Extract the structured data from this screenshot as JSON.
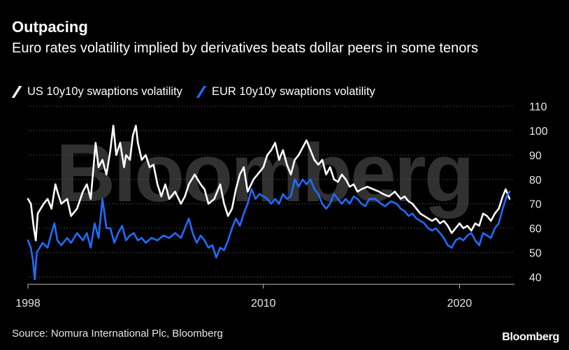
{
  "header": {
    "title": "Outpacing",
    "subtitle": "Euro rates volatility implied by derivatives beats dollar peers in some tenors"
  },
  "footer": {
    "source": "Source: Nomura International Plc, Bloomberg",
    "brand": "Bloomberg"
  },
  "watermark": "Bloomberg",
  "colors": {
    "background": "#000000",
    "us_series": "#ffffff",
    "eur_series": "#1f6cff",
    "grid": "#666666"
  },
  "chart_data": {
    "type": "line",
    "title": "Outpacing",
    "xlabel": "",
    "ylabel": "",
    "xlim": [
      1998,
      2022.8
    ],
    "ylim": [
      37,
      112
    ],
    "x_ticks": [
      1998,
      2010,
      2020
    ],
    "x_tick_labels": [
      "1998",
      "2010",
      "2020"
    ],
    "y_ticks": [
      40,
      50,
      60,
      70,
      80,
      90,
      100,
      110
    ],
    "y_tick_labels": [
      "40",
      "50",
      "60",
      "70",
      "80",
      "90",
      "100",
      "110"
    ],
    "grid": true,
    "legend_position": "top-left",
    "series": [
      {
        "name": "US 10y10y swaptions volatility",
        "color": "#ffffff",
        "points": [
          [
            1998.0,
            72
          ],
          [
            1998.15,
            70
          ],
          [
            1998.3,
            60
          ],
          [
            1998.4,
            55
          ],
          [
            1998.5,
            66
          ],
          [
            1998.65,
            68
          ],
          [
            1998.8,
            70
          ],
          [
            1999.0,
            72
          ],
          [
            1999.2,
            68
          ],
          [
            1999.4,
            78
          ],
          [
            1999.5,
            75
          ],
          [
            1999.7,
            70
          ],
          [
            2000.0,
            72
          ],
          [
            2000.2,
            65
          ],
          [
            2000.5,
            68
          ],
          [
            2000.8,
            75
          ],
          [
            2001.0,
            78
          ],
          [
            2001.2,
            72
          ],
          [
            2001.45,
            95
          ],
          [
            2001.6,
            85
          ],
          [
            2001.8,
            88
          ],
          [
            2002.0,
            82
          ],
          [
            2002.2,
            92
          ],
          [
            2002.35,
            102
          ],
          [
            2002.5,
            90
          ],
          [
            2002.7,
            95
          ],
          [
            2002.9,
            85
          ],
          [
            2003.0,
            90
          ],
          [
            2003.2,
            88
          ],
          [
            2003.35,
            98
          ],
          [
            2003.5,
            102
          ],
          [
            2003.6,
            95
          ],
          [
            2003.8,
            88
          ],
          [
            2004.0,
            90
          ],
          [
            2004.2,
            85
          ],
          [
            2004.4,
            86
          ],
          [
            2004.6,
            78
          ],
          [
            2004.8,
            73
          ],
          [
            2005.0,
            78
          ],
          [
            2005.2,
            72
          ],
          [
            2005.5,
            75
          ],
          [
            2005.8,
            70
          ],
          [
            2006.0,
            73
          ],
          [
            2006.2,
            78
          ],
          [
            2006.5,
            82
          ],
          [
            2006.8,
            78
          ],
          [
            2007.0,
            76
          ],
          [
            2007.2,
            70
          ],
          [
            2007.5,
            72
          ],
          [
            2007.8,
            78
          ],
          [
            2008.0,
            70
          ],
          [
            2008.2,
            65
          ],
          [
            2008.4,
            68
          ],
          [
            2008.6,
            76
          ],
          [
            2008.8,
            82
          ],
          [
            2009.0,
            85
          ],
          [
            2009.2,
            75
          ],
          [
            2009.5,
            80
          ],
          [
            2009.7,
            82
          ],
          [
            2010.0,
            85
          ],
          [
            2010.2,
            90
          ],
          [
            2010.4,
            92
          ],
          [
            2010.6,
            95
          ],
          [
            2010.8,
            88
          ],
          [
            2011.0,
            92
          ],
          [
            2011.2,
            86
          ],
          [
            2011.4,
            82
          ],
          [
            2011.6,
            88
          ],
          [
            2011.8,
            90
          ],
          [
            2012.0,
            93
          ],
          [
            2012.2,
            96
          ],
          [
            2012.4,
            92
          ],
          [
            2012.6,
            88
          ],
          [
            2012.8,
            86
          ],
          [
            2013.0,
            88
          ],
          [
            2013.2,
            82
          ],
          [
            2013.4,
            85
          ],
          [
            2013.6,
            80
          ],
          [
            2013.8,
            79
          ],
          [
            2014.0,
            82
          ],
          [
            2014.2,
            80
          ],
          [
            2014.4,
            77
          ],
          [
            2014.6,
            78
          ],
          [
            2014.8,
            75
          ],
          [
            2015.0,
            76
          ],
          [
            2015.3,
            77
          ],
          [
            2015.6,
            76
          ],
          [
            2015.9,
            75
          ],
          [
            2016.1,
            74
          ],
          [
            2016.4,
            73
          ],
          [
            2016.7,
            75
          ],
          [
            2017.0,
            72
          ],
          [
            2017.2,
            73
          ],
          [
            2017.4,
            71
          ],
          [
            2017.6,
            70
          ],
          [
            2017.8,
            68
          ],
          [
            2018.0,
            66
          ],
          [
            2018.2,
            65
          ],
          [
            2018.4,
            64
          ],
          [
            2018.6,
            63
          ],
          [
            2018.8,
            64
          ],
          [
            2019.0,
            62
          ],
          [
            2019.2,
            63
          ],
          [
            2019.4,
            61
          ],
          [
            2019.6,
            58
          ],
          [
            2019.8,
            60
          ],
          [
            2020.0,
            62
          ],
          [
            2020.2,
            60
          ],
          [
            2020.4,
            61
          ],
          [
            2020.6,
            59
          ],
          [
            2020.8,
            62
          ],
          [
            2021.0,
            61
          ],
          [
            2021.2,
            66
          ],
          [
            2021.4,
            65
          ],
          [
            2021.6,
            63
          ],
          [
            2021.8,
            66
          ],
          [
            2022.0,
            68
          ],
          [
            2022.2,
            73
          ],
          [
            2022.35,
            76
          ],
          [
            2022.55,
            72
          ]
        ]
      },
      {
        "name": "EUR 10y10y swaptions volatility",
        "color": "#1f6cff",
        "points": [
          [
            1998.0,
            55
          ],
          [
            1998.15,
            52
          ],
          [
            1998.25,
            47
          ],
          [
            1998.35,
            39
          ],
          [
            1998.45,
            50
          ],
          [
            1998.6,
            52
          ],
          [
            1998.75,
            54
          ],
          [
            1999.0,
            52
          ],
          [
            1999.2,
            58
          ],
          [
            1999.35,
            62
          ],
          [
            1999.5,
            55
          ],
          [
            1999.7,
            53
          ],
          [
            2000.0,
            56
          ],
          [
            2000.2,
            54
          ],
          [
            2000.5,
            58
          ],
          [
            2000.8,
            55
          ],
          [
            2001.0,
            58
          ],
          [
            2001.2,
            52
          ],
          [
            2001.4,
            62
          ],
          [
            2001.6,
            56
          ],
          [
            2001.8,
            72
          ],
          [
            2002.0,
            60
          ],
          [
            2002.2,
            60
          ],
          [
            2002.4,
            54
          ],
          [
            2002.6,
            58
          ],
          [
            2002.8,
            61
          ],
          [
            2003.0,
            55
          ],
          [
            2003.2,
            57
          ],
          [
            2003.4,
            58
          ],
          [
            2003.6,
            55
          ],
          [
            2003.8,
            56
          ],
          [
            2004.0,
            54
          ],
          [
            2004.3,
            56
          ],
          [
            2004.6,
            55
          ],
          [
            2004.9,
            57
          ],
          [
            2005.2,
            56
          ],
          [
            2005.5,
            58
          ],
          [
            2005.8,
            56
          ],
          [
            2006.0,
            60
          ],
          [
            2006.2,
            64
          ],
          [
            2006.4,
            58
          ],
          [
            2006.6,
            54
          ],
          [
            2006.8,
            57
          ],
          [
            2007.0,
            55
          ],
          [
            2007.2,
            52
          ],
          [
            2007.4,
            53
          ],
          [
            2007.6,
            48
          ],
          [
            2007.8,
            52
          ],
          [
            2008.0,
            51
          ],
          [
            2008.2,
            55
          ],
          [
            2008.4,
            60
          ],
          [
            2008.6,
            64
          ],
          [
            2008.8,
            61
          ],
          [
            2009.0,
            66
          ],
          [
            2009.2,
            70
          ],
          [
            2009.4,
            76
          ],
          [
            2009.6,
            72
          ],
          [
            2009.8,
            74
          ],
          [
            2010.0,
            73
          ],
          [
            2010.2,
            72
          ],
          [
            2010.4,
            70
          ],
          [
            2010.6,
            72
          ],
          [
            2010.8,
            70
          ],
          [
            2011.0,
            74
          ],
          [
            2011.2,
            72
          ],
          [
            2011.4,
            73
          ],
          [
            2011.6,
            80
          ],
          [
            2011.8,
            77
          ],
          [
            2012.0,
            80
          ],
          [
            2012.2,
            78
          ],
          [
            2012.4,
            80
          ],
          [
            2012.6,
            76
          ],
          [
            2012.8,
            74
          ],
          [
            2013.0,
            70
          ],
          [
            2013.2,
            68
          ],
          [
            2013.4,
            70
          ],
          [
            2013.6,
            74
          ],
          [
            2013.8,
            72
          ],
          [
            2014.0,
            70
          ],
          [
            2014.2,
            72
          ],
          [
            2014.4,
            70
          ],
          [
            2014.6,
            73
          ],
          [
            2014.8,
            72
          ],
          [
            2015.0,
            70
          ],
          [
            2015.2,
            69
          ],
          [
            2015.4,
            72
          ],
          [
            2015.7,
            72
          ],
          [
            2016.0,
            70
          ],
          [
            2016.2,
            69
          ],
          [
            2016.5,
            71
          ],
          [
            2016.8,
            70
          ],
          [
            2017.0,
            68
          ],
          [
            2017.2,
            67
          ],
          [
            2017.4,
            65
          ],
          [
            2017.6,
            66
          ],
          [
            2017.8,
            64
          ],
          [
            2018.0,
            63
          ],
          [
            2018.2,
            62
          ],
          [
            2018.4,
            60
          ],
          [
            2018.6,
            59
          ],
          [
            2018.8,
            60
          ],
          [
            2019.0,
            58
          ],
          [
            2019.2,
            56
          ],
          [
            2019.4,
            53
          ],
          [
            2019.6,
            52
          ],
          [
            2019.8,
            55
          ],
          [
            2020.0,
            56
          ],
          [
            2020.2,
            55
          ],
          [
            2020.4,
            57
          ],
          [
            2020.6,
            58
          ],
          [
            2020.8,
            55
          ],
          [
            2021.0,
            53
          ],
          [
            2021.2,
            58
          ],
          [
            2021.4,
            57
          ],
          [
            2021.6,
            56
          ],
          [
            2021.8,
            60
          ],
          [
            2022.0,
            62
          ],
          [
            2022.2,
            68
          ],
          [
            2022.4,
            73
          ],
          [
            2022.55,
            75
          ]
        ]
      }
    ]
  }
}
